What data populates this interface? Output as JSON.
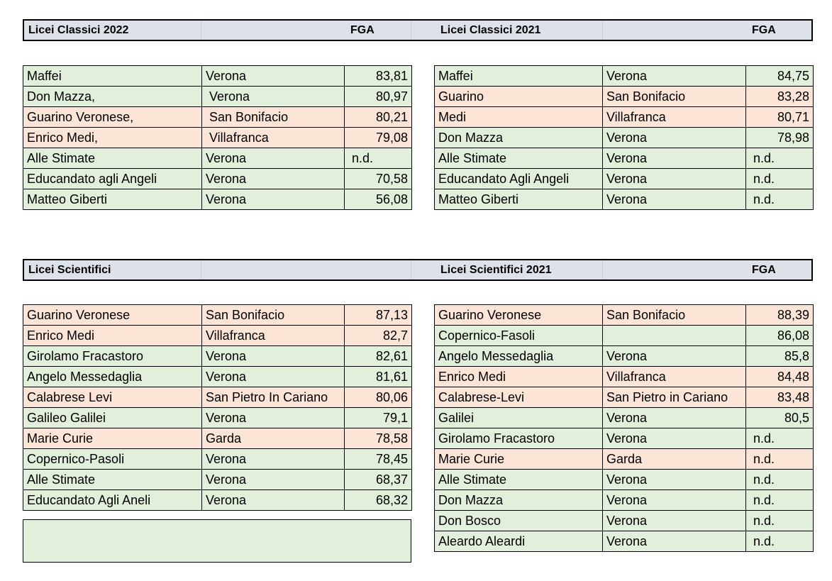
{
  "section_classici": {
    "header_2022": {
      "title": "Licei Classici 2022",
      "fga": "FGA"
    },
    "header_2021": {
      "title": "Licei Classici 2021",
      "fga": "FGA"
    },
    "rows_2022": [
      {
        "name": "Maffei",
        "city": "Verona",
        "fga": "83,81",
        "tint": "#e2efda"
      },
      {
        "name": "Don Mazza,",
        "city": " Verona",
        "fga": "80,97",
        "tint": "#e2efda"
      },
      {
        "name": "Guarino Veronese,",
        "city": " San Bonifacio",
        "fga": "80,21",
        "tint": "#fce4d6"
      },
      {
        "name": "Enrico Medi,",
        "city": " Villafranca",
        "fga": "79,08",
        "tint": "#fce4d6"
      },
      {
        "name": "Alle Stimate",
        "city": "Verona",
        "fga": "n.d.",
        "tint": "#e2efda"
      },
      {
        "name": "Educandato agli Angeli",
        "city": "Verona",
        "fga": "70,58",
        "tint": "#e2efda"
      },
      {
        "name": "Matteo Giberti",
        "city": "Verona",
        "fga": "56,08",
        "tint": "#e2efda"
      }
    ],
    "rows_2021": [
      {
        "name": "Maffei",
        "city": "Verona",
        "fga": "84,75",
        "tint": "#e2efda"
      },
      {
        "name": "Guarino",
        "city": "San Bonifacio",
        "fga": "83,28",
        "tint": "#fce4d6"
      },
      {
        "name": "Medi",
        "city": "Villafranca",
        "fga": "80,71",
        "tint": "#fce4d6"
      },
      {
        "name": "Don Mazza",
        "city": "Verona",
        "fga": "78,98",
        "tint": "#e2efda"
      },
      {
        "name": "Alle Stimate",
        "city": "Verona",
        "fga": "n.d.",
        "tint": "#e2efda"
      },
      {
        "name": "Educandato Agli Angeli",
        "city": "Verona",
        "fga": "n.d.",
        "tint": "#e2efda"
      },
      {
        "name": "Matteo Giberti",
        "city": "Verona",
        "fga": "n.d.",
        "tint": "#e2efda"
      }
    ]
  },
  "section_scientifici": {
    "header_left": {
      "title": "Licei Scientifici",
      "fga": ""
    },
    "header_2021": {
      "title": "Licei Scientifici 2021",
      "fga": "FGA"
    },
    "rows_left": [
      {
        "name": "Guarino Veronese",
        "city": "San Bonifacio",
        "fga": "87,13",
        "tint": "#fce4d6"
      },
      {
        "name": "Enrico Medi",
        "city": "Villafranca",
        "fga": "82,7",
        "tint": "#fce4d6"
      },
      {
        "name": "Girolamo Fracastoro",
        "city": "Verona",
        "fga": "82,61",
        "tint": "#e2efda"
      },
      {
        "name": "Angelo Messedaglia",
        "city": "Verona",
        "fga": "81,61",
        "tint": "#e2efda"
      },
      {
        "name": "Calabrese Levi",
        "city": "San Pietro In Cariano",
        "fga": "80,06",
        "tint": "#fce4d6"
      },
      {
        "name": "Galileo Galilei",
        "city": "Verona",
        "fga": "79,1",
        "tint": "#e2efda"
      },
      {
        "name": "Marie Curie",
        "city": "Garda",
        "fga": "78,58",
        "tint": "#fce4d6"
      },
      {
        "name": "Copernico-Pasoli",
        "city": "Verona",
        "fga": "78,45",
        "tint": "#e2efda"
      },
      {
        "name": "Alle Stimate",
        "city": "Verona",
        "fga": "68,37",
        "tint": "#e2efda"
      },
      {
        "name": "Educandato Agli Aneli",
        "city": "Verona",
        "fga": "68,32",
        "tint": "#e2efda"
      }
    ],
    "rows_2021": [
      {
        "name": "Guarino Veronese",
        "city": "San Bonifacio",
        "fga": "88,39",
        "tint": "#fce4d6"
      },
      {
        "name": "Copernico-Fasoli",
        "city": "",
        "fga": "86,08",
        "tint": "#e2efda"
      },
      {
        "name": "Angelo Messedaglia",
        "city": "Verona",
        "fga": "85,8",
        "tint": "#e2efda"
      },
      {
        "name": "Enrico Medi",
        "city": "Villafranca",
        "fga": "84,48",
        "tint": "#fce4d6"
      },
      {
        "name": "Calabrese-Levi",
        "city": "San Pietro in Cariano",
        "fga": "83,48",
        "tint": "#fce4d6"
      },
      {
        "name": "Galilei",
        "city": "Verona",
        "fga": "80,5",
        "tint": "#e2efda"
      },
      {
        "name": "Girolamo Fracastoro",
        "city": "Verona",
        "fga": "n.d.",
        "tint": "#e2efda"
      },
      {
        "name": "Marie Curie",
        "city": "Garda",
        "fga": "n.d.",
        "tint": "#fce4d6"
      },
      {
        "name": "Alle Stimate",
        "city": "Verona",
        "fga": "n.d.",
        "tint": "#e2efda"
      },
      {
        "name": "Don Mazza",
        "city": "Verona",
        "fga": "n.d.",
        "tint": "#e2efda"
      },
      {
        "name": "Don Bosco",
        "city": "Verona",
        "fga": "n.d.",
        "tint": "#e2efda"
      },
      {
        "name": "Aleardo Aleardi",
        "city": "Verona",
        "fga": "n.d.",
        "tint": "#e2efda"
      }
    ]
  }
}
